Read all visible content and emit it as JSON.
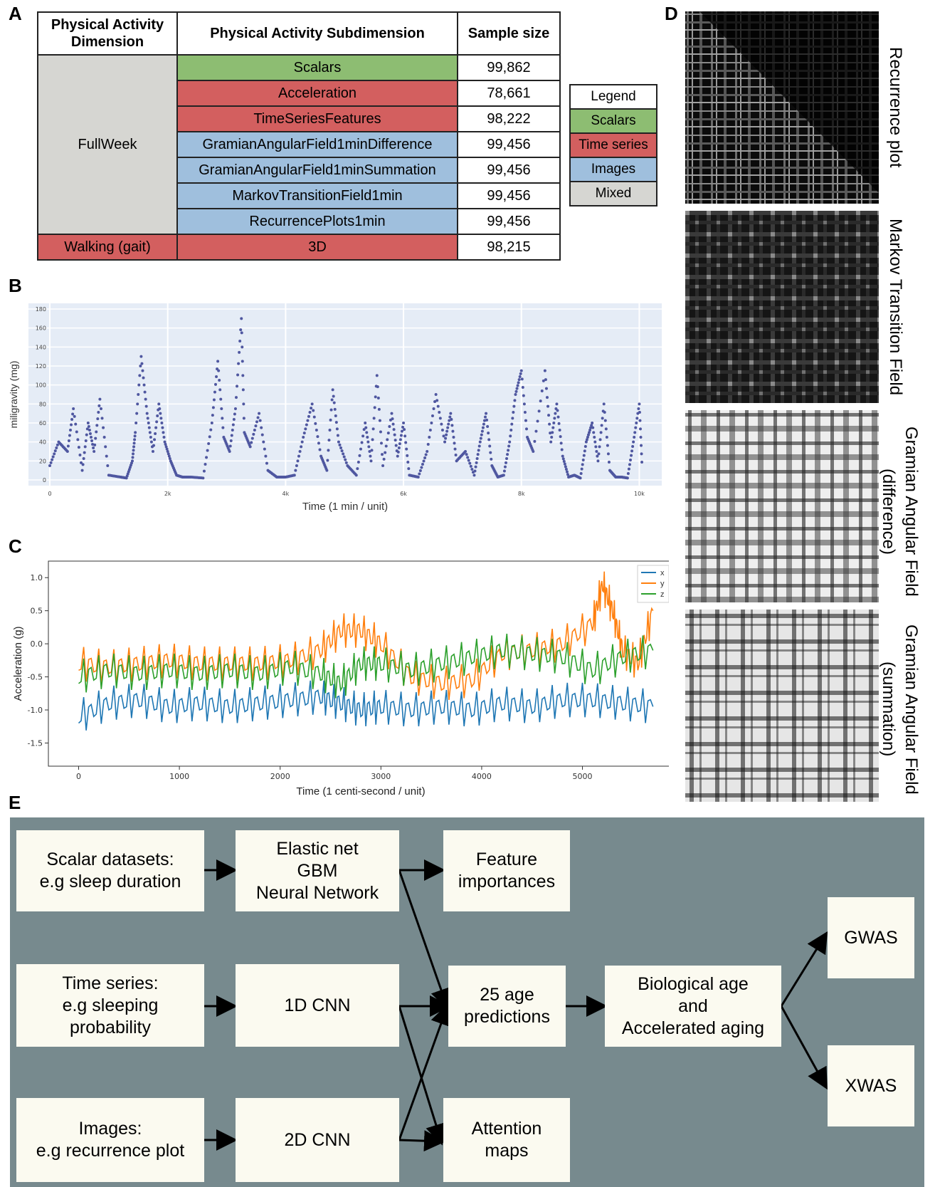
{
  "panels": {
    "a": "A",
    "b": "B",
    "c": "C",
    "d": "D",
    "e": "E"
  },
  "table": {
    "headers": [
      "Physical Activity Dimension",
      "Physical Activity Subdimension",
      "Sample size"
    ],
    "groups": [
      {
        "dimension": "FullWeek",
        "color": "#d6d6d2"
      },
      {
        "dimension": "Walking (gait)",
        "color": "#d35f5f"
      }
    ],
    "rows": [
      {
        "sub": "Scalars",
        "n": "99,862",
        "kind": "scalars"
      },
      {
        "sub": "Acceleration",
        "n": "78,661",
        "kind": "ts"
      },
      {
        "sub": "TimeSeriesFeatures",
        "n": "98,222",
        "kind": "ts"
      },
      {
        "sub": "GramianAngularField1minDifference",
        "n": "99,456",
        "kind": "img"
      },
      {
        "sub": "GramianAngularField1minSummation",
        "n": "99,456",
        "kind": "img"
      },
      {
        "sub": "MarkovTransitionField1min",
        "n": "99,456",
        "kind": "img"
      },
      {
        "sub": "RecurrencePlots1min",
        "n": "99,456",
        "kind": "img"
      },
      {
        "sub": "3D",
        "n": "98,215",
        "kind": "ts"
      }
    ]
  },
  "legend": {
    "title": "Legend",
    "items": [
      {
        "label": "Scalars",
        "color": "#8dbd72"
      },
      {
        "label": "Time series",
        "color": "#d35f5f"
      },
      {
        "label": "Images",
        "color": "#9fbfdd"
      },
      {
        "label": "Mixed",
        "color": "#d6d6d2"
      }
    ]
  },
  "images": [
    {
      "label": "Recurrence plot"
    },
    {
      "label": "Markov Transition Field"
    },
    {
      "label": "Gramian Angular Field\n(difference)"
    },
    {
      "label": "Gramian Angular Field\n(summation)"
    }
  ],
  "chart_data": [
    {
      "type": "scatter",
      "xlabel": "Time (1 min / unit)",
      "ylabel": "miligravity (mg)",
      "xlim": [
        0,
        10200
      ],
      "ylim": [
        0,
        180
      ],
      "xticks": [
        0,
        2000,
        4000,
        6000,
        8000,
        10000
      ],
      "xtick_labels": [
        "0",
        "2k",
        "4k",
        "6k",
        "8k",
        "10k"
      ],
      "yticks": [
        0,
        20,
        40,
        60,
        80,
        100,
        120,
        140,
        160,
        180
      ],
      "series": [
        {
          "color": "#4f57a0",
          "x": [
            0,
            150,
            300,
            400,
            550,
            650,
            750,
            850,
            1000,
            1200,
            1300,
            1400,
            1450,
            1550,
            1650,
            1750,
            1850,
            1950,
            2050,
            2150,
            2250,
            2400,
            2600,
            2750,
            2850,
            2950,
            3050,
            3150,
            3250,
            3300,
            3400,
            3550,
            3700,
            3850,
            4000,
            4150,
            4300,
            4450,
            4600,
            4700,
            4800,
            4900,
            5050,
            5200,
            5350,
            5450,
            5550,
            5650,
            5800,
            5900,
            6000,
            6100,
            6250,
            6400,
            6550,
            6700,
            6800,
            6900,
            7050,
            7200,
            7300,
            7400,
            7500,
            7600,
            7700,
            7800,
            7900,
            8000,
            8100,
            8200,
            8400,
            8500,
            8600,
            8700,
            8800,
            8900,
            9000,
            9100,
            9200,
            9300,
            9400,
            9500,
            9600,
            9700,
            9800,
            9900,
            10000,
            10050
          ],
          "y": [
            15,
            40,
            30,
            75,
            10,
            60,
            30,
            85,
            5,
            3,
            2,
            20,
            50,
            130,
            70,
            30,
            80,
            40,
            20,
            5,
            3,
            3,
            2,
            60,
            125,
            45,
            30,
            75,
            170,
            50,
            35,
            70,
            10,
            3,
            3,
            5,
            45,
            80,
            25,
            10,
            95,
            40,
            15,
            5,
            60,
            20,
            110,
            15,
            70,
            25,
            60,
            5,
            3,
            30,
            90,
            40,
            70,
            20,
            30,
            5,
            40,
            70,
            15,
            3,
            5,
            40,
            90,
            115,
            45,
            30,
            115,
            40,
            80,
            25,
            3,
            5,
            2,
            40,
            60,
            20,
            80,
            10,
            3,
            3,
            2,
            40,
            80,
            10
          ]
        }
      ]
    },
    {
      "type": "line",
      "xlabel": "Time (1 centi-second / unit)",
      "ylabel": "Acceleration (g)",
      "xlim": [
        -300,
        5900
      ],
      "ylim": [
        -1.85,
        1.25
      ],
      "xticks": [
        0,
        1000,
        2000,
        3000,
        4000,
        5000
      ],
      "yticks": [
        -1.5,
        -1.0,
        -0.5,
        0.0,
        0.5,
        1.0
      ],
      "legend": "top-right",
      "series": [
        {
          "name": "x",
          "color": "#1f77b4",
          "x": [
            0,
            300,
            600,
            900,
            1200,
            1500,
            1800,
            2100,
            2400,
            2600,
            2800,
            3000,
            3300,
            3600,
            3900,
            4200,
            4500,
            4800,
            5100,
            5400,
            5700
          ],
          "y": [
            -1.1,
            -0.9,
            -0.85,
            -0.95,
            -0.9,
            -0.95,
            -0.9,
            -0.85,
            -0.8,
            -0.9,
            -1.0,
            -0.95,
            -1.0,
            -0.95,
            -1.0,
            -0.9,
            -0.95,
            -0.85,
            -0.85,
            -0.9,
            -0.95
          ]
        },
        {
          "name": "y",
          "color": "#ff7f0e",
          "x": [
            0,
            300,
            600,
            900,
            1200,
            1500,
            1800,
            2100,
            2400,
            2600,
            2800,
            3000,
            3300,
            3600,
            3900,
            4200,
            4500,
            4800,
            5100,
            5200,
            5300,
            5400,
            5550,
            5700
          ],
          "y": [
            -0.3,
            -0.35,
            -0.3,
            -0.25,
            -0.3,
            -0.3,
            -0.3,
            -0.25,
            -0.1,
            0.2,
            0.2,
            0.0,
            -0.5,
            -0.6,
            -0.55,
            -0.15,
            -0.1,
            0.0,
            0.3,
            0.9,
            0.5,
            -0.1,
            -0.3,
            0.5
          ]
        },
        {
          "name": "z",
          "color": "#2ca02c",
          "x": [
            0,
            300,
            600,
            900,
            1200,
            1500,
            1800,
            2100,
            2400,
            2600,
            2800,
            3000,
            3300,
            3600,
            3900,
            4200,
            4500,
            4800,
            5100,
            5400,
            5700
          ],
          "y": [
            -0.5,
            -0.4,
            -0.45,
            -0.4,
            -0.45,
            -0.4,
            -0.45,
            -0.35,
            -0.45,
            -0.6,
            -0.3,
            -0.3,
            -0.4,
            -0.3,
            -0.2,
            -0.1,
            -0.15,
            -0.2,
            -0.4,
            -0.2,
            -0.1
          ]
        }
      ]
    }
  ],
  "flow": {
    "scalar_input": "Scalar datasets:\ne.g sleep duration",
    "ts_input": "Time series:\ne.g sleeping\nprobability",
    "img_input": "Images:\ne.g recurrence plot",
    "scalar_model": "Elastic net\nGBM\nNeural Network",
    "ts_model": "1D CNN",
    "img_model": "2D CNN",
    "feature_importances": "Feature\nimportances",
    "age_predictions": "25 age\npredictions",
    "attention_maps": "Attention\nmaps",
    "biological_age": "Biological age\nand\nAccelerated aging",
    "gwas": "GWAS",
    "xwas": "XWAS"
  }
}
